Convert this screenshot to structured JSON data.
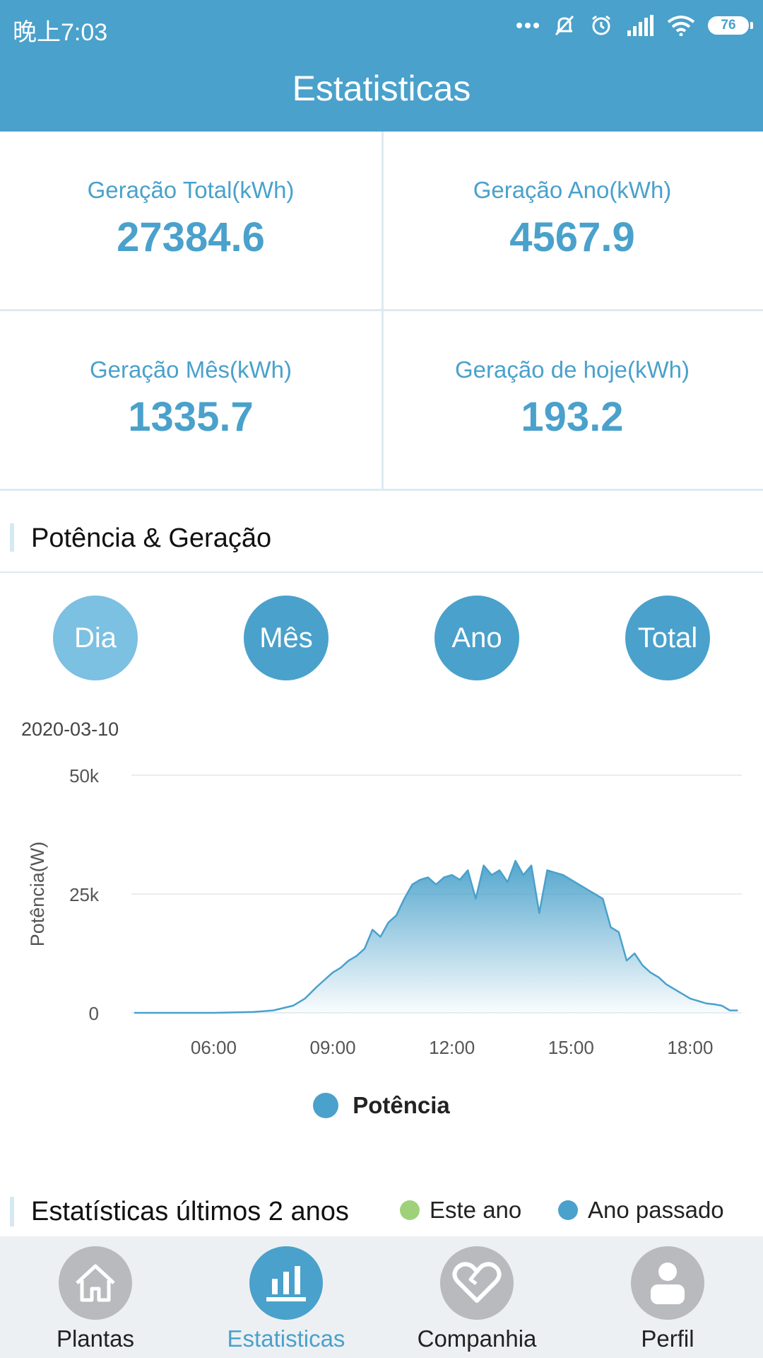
{
  "status_bar": {
    "time": "晚上7:03",
    "battery": "76",
    "icons": [
      "more-dots-icon",
      "silent-bell-icon",
      "alarm-icon",
      "signal-icon",
      "wifi-icon",
      "battery-icon"
    ]
  },
  "header": {
    "title": "Estatisticas"
  },
  "stats": [
    {
      "label": "Geração Total(kWh)",
      "value": "27384.6"
    },
    {
      "label": "Geração Ano(kWh)",
      "value": "4567.9"
    },
    {
      "label": "Geração Mês(kWh)",
      "value": "1335.7"
    },
    {
      "label": "Geração de hoje(kWh)",
      "value": "193.2"
    }
  ],
  "section_power": {
    "title": "Potência & Geração"
  },
  "period_tabs": [
    {
      "label": "Dia",
      "active": true
    },
    {
      "label": "Mês",
      "active": false
    },
    {
      "label": "Ano",
      "active": false
    },
    {
      "label": "Total",
      "active": false
    }
  ],
  "chart_date": "2020-03-10",
  "chart_data": {
    "type": "area",
    "title": "",
    "ylabel": "Potência(W)",
    "xlabel": "",
    "x_ticks": [
      "06:00",
      "09:00",
      "12:00",
      "15:00",
      "18:00"
    ],
    "y_ticks": [
      "0",
      "25k",
      "50k"
    ],
    "ylim": [
      0,
      50000
    ],
    "xlim_hours": [
      4.0,
      19.3
    ],
    "grid": true,
    "legend": "bottom",
    "series": [
      {
        "name": "Potência",
        "color": "#4aa1cb",
        "x_hours": [
          4.0,
          5.0,
          6.0,
          7.0,
          7.5,
          8.0,
          8.3,
          8.6,
          8.8,
          9.0,
          9.2,
          9.4,
          9.6,
          9.8,
          10.0,
          10.2,
          10.4,
          10.6,
          10.8,
          11.0,
          11.2,
          11.4,
          11.6,
          11.8,
          12.0,
          12.2,
          12.4,
          12.6,
          12.8,
          13.0,
          13.2,
          13.4,
          13.6,
          13.8,
          14.0,
          14.2,
          14.4,
          14.6,
          14.8,
          15.0,
          15.2,
          15.4,
          15.6,
          15.8,
          16.0,
          16.2,
          16.4,
          16.6,
          16.8,
          17.0,
          17.2,
          17.4,
          17.6,
          17.8,
          18.0,
          18.2,
          18.4,
          18.6,
          18.8,
          19.0,
          19.2
        ],
        "values": [
          0,
          0,
          0,
          200,
          500,
          1500,
          3000,
          5500,
          7000,
          8500,
          9500,
          11000,
          12000,
          13500,
          17500,
          16000,
          19000,
          20500,
          24000,
          27000,
          28000,
          28500,
          27000,
          28500,
          29000,
          28000,
          30000,
          24000,
          31000,
          29000,
          30000,
          27500,
          32000,
          29000,
          31000,
          21000,
          30000,
          29500,
          29000,
          28000,
          27000,
          26000,
          25000,
          24000,
          18000,
          17000,
          11000,
          12500,
          10000,
          8500,
          7500,
          6000,
          5000,
          4000,
          3000,
          2500,
          2000,
          1800,
          1500,
          500,
          500
        ]
      }
    ]
  },
  "section_stats2": {
    "title": "Estatísticas últimos 2 anos"
  },
  "stats2_legend": [
    {
      "label": "Este ano",
      "color": "#9fd17a"
    },
    {
      "label": "Ano passado",
      "color": "#4aa1cb"
    }
  ],
  "bottom_nav": [
    {
      "label": "Plantas",
      "icon": "house-icon",
      "active": false
    },
    {
      "label": "Estatisticas",
      "icon": "bar-chart-icon",
      "active": true
    },
    {
      "label": "Companhia",
      "icon": "heart-icon",
      "active": false
    },
    {
      "label": "Perfil",
      "icon": "person-icon",
      "active": false
    }
  ]
}
